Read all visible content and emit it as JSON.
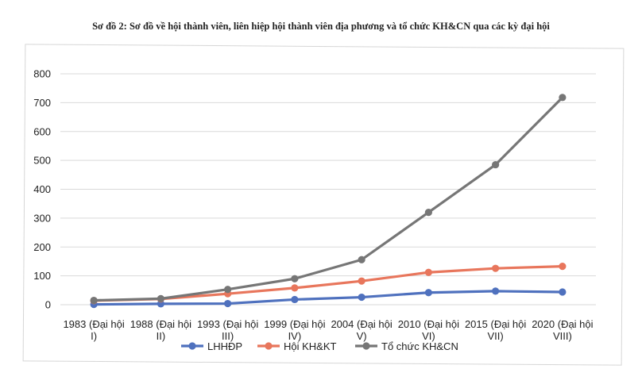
{
  "chart_data": {
    "type": "line",
    "title": "Sơ đồ 2: Sơ đồ về hội thành viên, liên hiệp hội thành viên địa phương và tổ chức KH&CN qua các kỳ đại hội",
    "xlabel": "",
    "ylabel": "",
    "ylim": [
      0,
      800
    ],
    "yticks": [
      "0",
      "100",
      "200",
      "300",
      "400",
      "500",
      "600",
      "700",
      "800"
    ],
    "categories": [
      [
        "1983 (Đại hội",
        "I)"
      ],
      [
        "1988 (Đại hội",
        "II)"
      ],
      [
        "1993 (Đại hội",
        "III)"
      ],
      [
        "1999 (Đại hội",
        "IV)"
      ],
      [
        "2004 (Đại hội",
        "V)"
      ],
      [
        "2010 (Đại hội",
        "VI)"
      ],
      [
        "2015 (Đại hội",
        "VII)"
      ],
      [
        "2020 (Đại hội",
        "VIII)"
      ]
    ],
    "series": [
      {
        "name": "LHHĐP",
        "color": "#4f71be",
        "values": [
          1,
          3,
          4,
          18,
          26,
          42,
          47,
          44
        ]
      },
      {
        "name": "Hội KH&KT",
        "color": "#e8765c",
        "values": [
          14,
          20,
          38,
          58,
          82,
          112,
          126,
          133
        ]
      },
      {
        "name": "Tổ chức KH&CN",
        "color": "#767676",
        "values": [
          15,
          21,
          53,
          90,
          156,
          320,
          485,
          718
        ]
      }
    ],
    "grid": true,
    "legend": "bottom"
  }
}
